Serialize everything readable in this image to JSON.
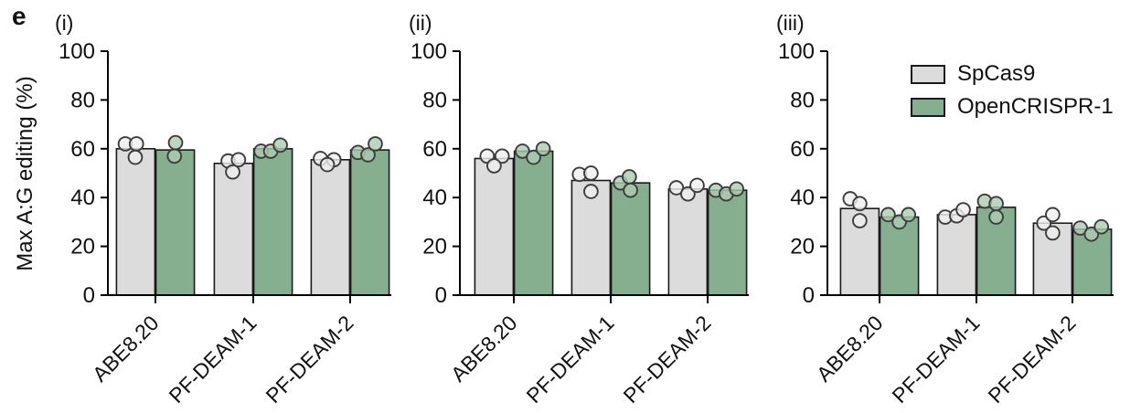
{
  "figure_label": "e",
  "legend": {
    "position": "top area of panel (iii)",
    "entries": [
      {
        "name": "SpCas9",
        "color": "#dcdcdc"
      },
      {
        "name": "OpenCRISPR-1",
        "color": "#86af90"
      }
    ]
  },
  "colors": {
    "bar_stroke": "#1a1a1a",
    "axis": "#000000",
    "point_stroke": "#3d3d3d",
    "spcas9_fill": "#dcdcdc",
    "opencrispr_fill": "#86af90",
    "spcas9_point_fill": "#efefef",
    "opencrispr_point_fill": "#abccb1"
  },
  "chart_data": [
    {
      "type": "bar",
      "label": "(i)",
      "ylabel": "Max A:G editing (%)",
      "ylim": [
        0,
        100
      ],
      "yticks": [
        0,
        20,
        40,
        60,
        80,
        100
      ],
      "grid": false,
      "categories": [
        "ABE8.20",
        "PF-DEAM-1",
        "PF-DEAM-2"
      ],
      "series": [
        {
          "name": "SpCas9",
          "values": [
            60,
            54,
            55.5
          ],
          "points": [
            [
              {
                "v": 62,
                "dx": -0.27
              },
              {
                "v": 62,
                "dx": 0.02
              },
              {
                "v": 56.5,
                "dx": -0.01
              }
            ],
            [
              {
                "v": 55,
                "dx": -0.14
              },
              {
                "v": 55.5,
                "dx": 0.13
              },
              {
                "v": 50.5,
                "dx": -0.02
              }
            ],
            [
              {
                "v": 56,
                "dx": -0.26
              },
              {
                "v": 55.5,
                "dx": 0.09
              },
              {
                "v": 53.5,
                "dx": -0.08
              }
            ]
          ]
        },
        {
          "name": "OpenCRISPR-1",
          "values": [
            59.5,
            60,
            59.5
          ],
          "points": [
            [
              {
                "v": 62.5,
                "dx": 0.01
              },
              {
                "v": 57,
                "dx": -0.02
              }
            ],
            [
              {
                "v": 59,
                "dx": -0.31
              },
              {
                "v": 59,
                "dx": -0.06
              },
              {
                "v": 61.5,
                "dx": 0.19
              }
            ],
            [
              {
                "v": 58.5,
                "dx": -0.31
              },
              {
                "v": 57.5,
                "dx": -0.05
              },
              {
                "v": 62,
                "dx": 0.14
              }
            ]
          ]
        }
      ]
    },
    {
      "type": "bar",
      "label": "(ii)",
      "ylabel": "",
      "ylim": [
        0,
        100
      ],
      "yticks": [
        0,
        20,
        40,
        60,
        80,
        100
      ],
      "grid": false,
      "categories": [
        "ABE8.20",
        "PF-DEAM-1",
        "PF-DEAM-2"
      ],
      "series": [
        {
          "name": "SpCas9",
          "values": [
            56,
            47,
            43.5
          ],
          "points": [
            [
              {
                "v": 57,
                "dx": -0.18
              },
              {
                "v": 57,
                "dx": 0.21
              },
              {
                "v": 53,
                "dx": 0
              }
            ],
            [
              {
                "v": 49.5,
                "dx": -0.3
              },
              {
                "v": 50,
                "dx": 0
              },
              {
                "v": 42.5,
                "dx": 0
              }
            ],
            [
              {
                "v": 44,
                "dx": -0.3
              },
              {
                "v": 41.5,
                "dx": 0
              },
              {
                "v": 45,
                "dx": 0.24
              }
            ]
          ]
        },
        {
          "name": "OpenCRISPR-1",
          "values": [
            59,
            46,
            43
          ],
          "points": [
            [
              {
                "v": 59,
                "dx": -0.29
              },
              {
                "v": 56.5,
                "dx": 0
              },
              {
                "v": 60,
                "dx": 0.25
              }
            ],
            [
              {
                "v": 46,
                "dx": -0.26
              },
              {
                "v": 48.5,
                "dx": -0.03
              },
              {
                "v": 43,
                "dx": 0
              }
            ],
            [
              {
                "v": 43,
                "dx": -0.3
              },
              {
                "v": 41.5,
                "dx": -0.03
              },
              {
                "v": 43.5,
                "dx": 0.24
              }
            ]
          ]
        }
      ]
    },
    {
      "type": "bar",
      "label": "(iii)",
      "ylabel": "",
      "ylim": [
        0,
        100
      ],
      "yticks": [
        0,
        20,
        40,
        60,
        80,
        100
      ],
      "grid": false,
      "categories": [
        "ABE8.20",
        "PF-DEAM-1",
        "PF-DEAM-2"
      ],
      "series": [
        {
          "name": "SpCas9",
          "values": [
            35.5,
            33,
            29.5
          ],
          "points": [
            [
              {
                "v": 39.5,
                "dx": -0.25
              },
              {
                "v": 37.5,
                "dx": 0
              },
              {
                "v": 30.5,
                "dx": 0
              }
            ],
            [
              {
                "v": 32,
                "dx": -0.3
              },
              {
                "v": 32.5,
                "dx": 0
              },
              {
                "v": 35,
                "dx": 0.17
              }
            ],
            [
              {
                "v": 29.5,
                "dx": -0.23
              },
              {
                "v": 33,
                "dx": 0
              },
              {
                "v": 25.5,
                "dx": 0
              }
            ]
          ]
        },
        {
          "name": "OpenCRISPR-1",
          "values": [
            32,
            36,
            27
          ],
          "points": [
            [
              {
                "v": 33,
                "dx": -0.29
              },
              {
                "v": 30,
                "dx": 0
              },
              {
                "v": 33,
                "dx": 0.24
              }
            ],
            [
              {
                "v": 38.5,
                "dx": -0.3
              },
              {
                "v": 37.5,
                "dx": 0
              },
              {
                "v": 32,
                "dx": 0
              }
            ],
            [
              {
                "v": 27.5,
                "dx": -0.31
              },
              {
                "v": 25,
                "dx": -0.02
              },
              {
                "v": 28,
                "dx": 0.24
              }
            ]
          ]
        }
      ]
    }
  ]
}
